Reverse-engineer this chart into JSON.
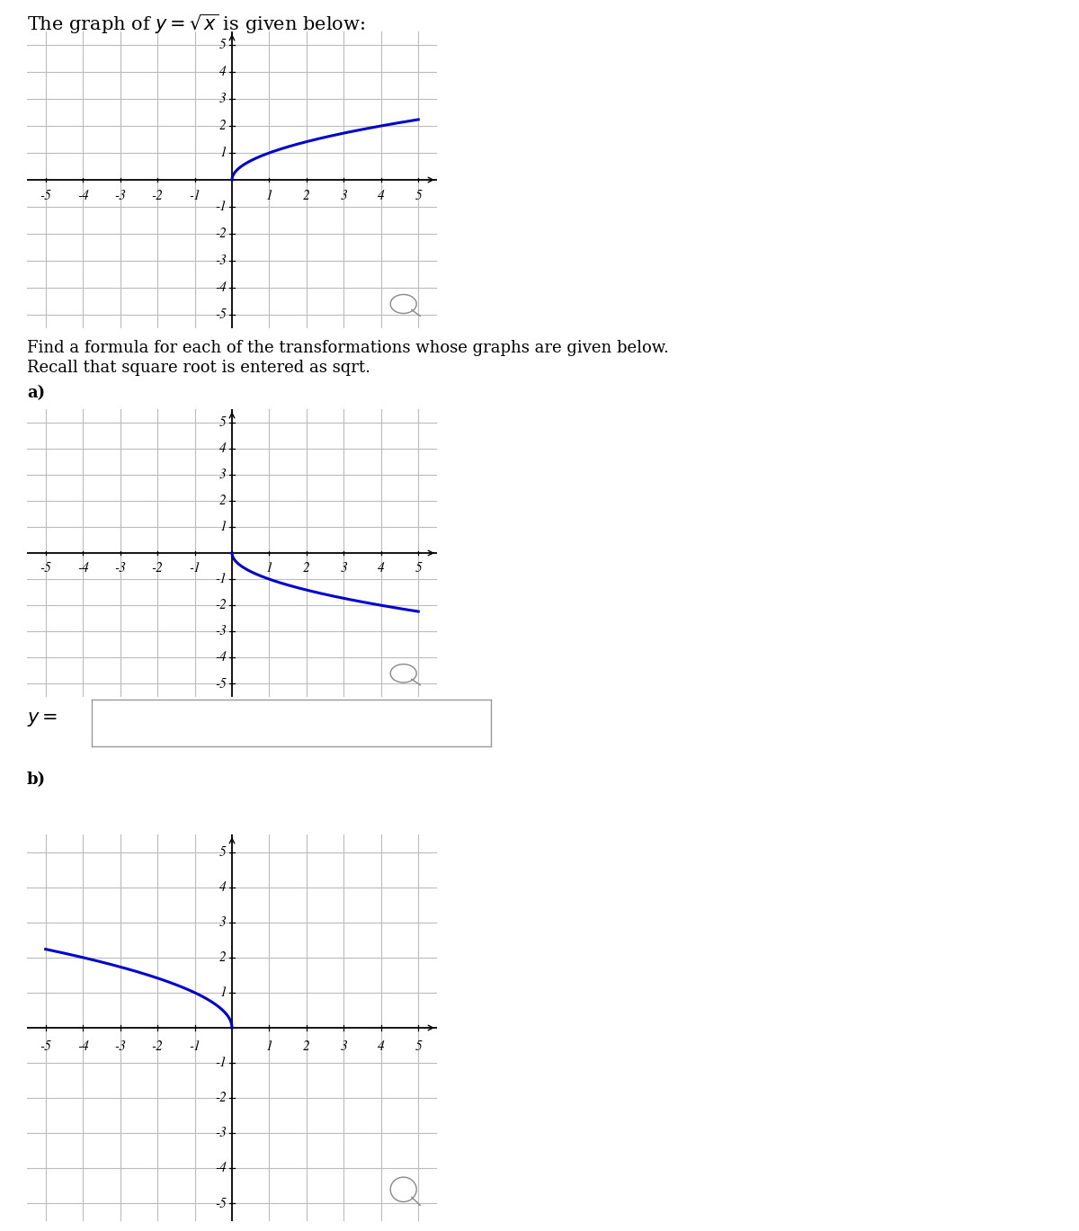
{
  "title_text": "The graph of $y = \\sqrt{x}$ is given below:",
  "find_formula_text": "Find a formula for each of the transformations whose graphs are given below.",
  "recall_text": "Recall that square root is entered as sqrt.",
  "label_a": "a)",
  "label_b": "b)",
  "y_equals": "$y = $",
  "curve_color": "#0000cc",
  "grid_color": "#bbbbbb",
  "axis_color": "#000000",
  "xlim": [
    -5.5,
    5.5
  ],
  "ylim": [
    -5.5,
    5.5
  ],
  "xticks": [
    -5,
    -4,
    -3,
    -2,
    -1,
    1,
    2,
    3,
    4,
    5
  ],
  "yticks": [
    -5,
    -4,
    -3,
    -2,
    -1,
    1,
    2,
    3,
    4,
    5
  ],
  "background_color": "#ffffff",
  "line_width": 2.2,
  "font_size_title": 15,
  "font_size_label": 13,
  "font_size_tick": 11
}
